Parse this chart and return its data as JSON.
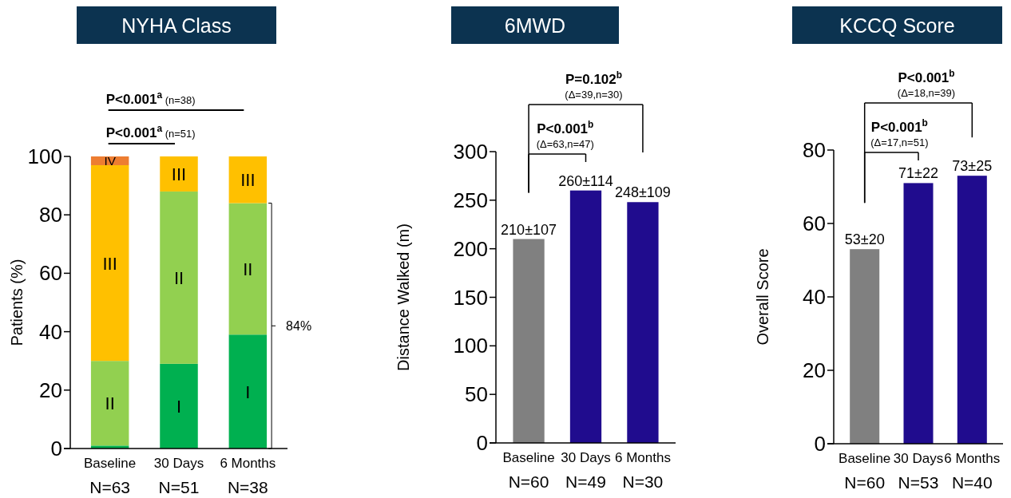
{
  "chart_data": [
    {
      "type": "bar",
      "stacked": true,
      "title": "NYHA Class",
      "ylabel": "Patients (%)",
      "categories": [
        "Baseline\nN=63",
        "30 Days\nN=51",
        "6 Months\nN=38"
      ],
      "series": [
        {
          "name": "I",
          "color": "#00b050",
          "values": [
            1,
            29,
            39
          ]
        },
        {
          "name": "II",
          "color": "#92d050",
          "values": [
            29,
            59,
            45
          ]
        },
        {
          "name": "III",
          "color": "#ffc000",
          "values": [
            67,
            12,
            16
          ]
        },
        {
          "name": "IV",
          "color": "#ed7d31",
          "values": [
            3,
            0,
            0
          ]
        }
      ],
      "ylim": [
        0,
        100
      ],
      "yticks": [
        0,
        20,
        40,
        60,
        80,
        100
      ],
      "annotations": [
        "P<0.001$^{a}$ (n=51)",
        "P<0.001$^{a}$ (n=38)",
        "84%"
      ]
    },
    {
      "type": "bar",
      "title": "6MWD",
      "ylabel": "Distance Walked (m)",
      "categories": [
        "Baseline\nN=60",
        "30 Days\nN=49",
        "6 Months\nN=30"
      ],
      "values": [
        210,
        260,
        248
      ],
      "colors": [
        "#808080",
        "#200c8e",
        "#200c8e"
      ],
      "value_labels": [
        "210±107",
        "260±114",
        "248±109"
      ],
      "ylim": [
        0,
        300
      ],
      "yticks": [
        0,
        50,
        100,
        150,
        200,
        250,
        300
      ],
      "annotations": [
        "P<0.001$^{b}$ (Δ=63,n=47)",
        "P=0.102$^{b}$ (Δ=39,n=30)"
      ]
    },
    {
      "type": "bar",
      "title": "KCCQ Score",
      "ylabel": "Overall Score",
      "categories": [
        "Baseline\nN=60",
        "30 Days\nN=53",
        "6 Months\nN=40"
      ],
      "values": [
        53,
        71,
        73
      ],
      "colors": [
        "#808080",
        "#200c8e",
        "#200c8e"
      ],
      "value_labels": [
        "53±20",
        "71±22",
        "73±25"
      ],
      "ylim": [
        0,
        80
      ],
      "yticks": [
        0,
        20,
        40,
        60,
        80
      ],
      "annotations": [
        "P<0.001$^{b}$ (Δ=17,n=51)",
        "P<0.001$^{b}$ (Δ=18,n=39)"
      ]
    }
  ]
}
